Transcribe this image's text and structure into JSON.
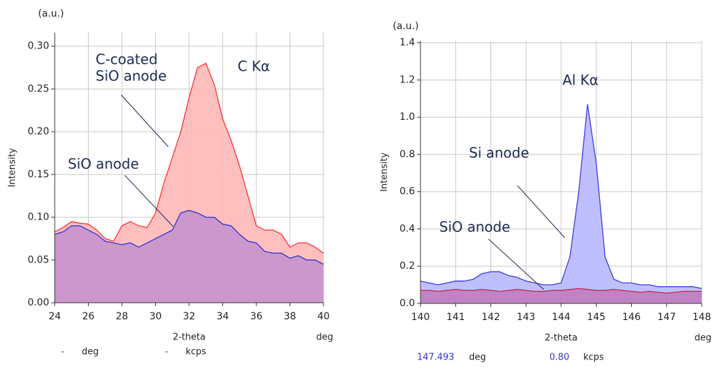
{
  "chart_data": [
    {
      "type": "area",
      "unit_label": "(a.u.)",
      "ylabel": "Intensity",
      "xlabel": "2-theta",
      "xunit": "deg",
      "xlim": [
        24,
        40
      ],
      "xticks": [
        24,
        26,
        28,
        30,
        32,
        34,
        36,
        38,
        40
      ],
      "ylim": [
        0,
        0.316
      ],
      "yticks": [
        {
          "value": 0,
          "label": "0.00"
        },
        {
          "value": 0.05,
          "label": "0.05"
        },
        {
          "value": 0.1,
          "label": "0.10"
        },
        {
          "value": 0.15,
          "label": "0.15"
        },
        {
          "value": 0.2,
          "label": "0.20"
        },
        {
          "value": 0.25,
          "label": "0.25"
        },
        {
          "value": 0.3,
          "label": "0.30"
        }
      ],
      "grid": true,
      "x": [
        24,
        24.5,
        25,
        25.5,
        26,
        26.5,
        27,
        27.5,
        28,
        28.5,
        29,
        29.5,
        30,
        30.5,
        31,
        31.5,
        32,
        32.5,
        33,
        33.5,
        34,
        34.5,
        35,
        35.5,
        36,
        36.5,
        37,
        37.5,
        38,
        38.5,
        39,
        39.5,
        40
      ],
      "series": [
        {
          "color": "#ff3030",
          "fill": "#ffb8b8",
          "values": [
            0.083,
            0.088,
            0.095,
            0.093,
            0.092,
            0.085,
            0.075,
            0.072,
            0.09,
            0.095,
            0.09,
            0.088,
            0.105,
            0.14,
            0.17,
            0.2,
            0.24,
            0.275,
            0.28,
            0.255,
            0.215,
            0.19,
            0.16,
            0.125,
            0.09,
            0.085,
            0.085,
            0.08,
            0.065,
            0.07,
            0.07,
            0.065,
            0.058
          ]
        },
        {
          "color": "#3030d0",
          "fill": "#b98ad0",
          "values": [
            0.08,
            0.083,
            0.09,
            0.09,
            0.085,
            0.08,
            0.072,
            0.07,
            0.068,
            0.07,
            0.065,
            0.07,
            0.075,
            0.08,
            0.085,
            0.105,
            0.108,
            0.105,
            0.1,
            0.1,
            0.092,
            0.09,
            0.08,
            0.072,
            0.07,
            0.06,
            0.058,
            0.058,
            0.052,
            0.055,
            0.05,
            0.05,
            0.045
          ]
        }
      ],
      "annotations": [
        {
          "lines": [
            "C-coated",
            "SiO anode"
          ]
        },
        {
          "lines": [
            "C Kα"
          ]
        },
        {
          "lines": [
            "SiO anode"
          ]
        }
      ],
      "status": [
        {
          "value": "-",
          "unit": "deg"
        },
        {
          "value": "-",
          "unit": "kcps"
        }
      ]
    },
    {
      "type": "area",
      "unit_label": "(a.u.)",
      "ylabel": "Intensity",
      "xlabel": "2-theta",
      "xunit": "deg",
      "xlim": [
        140,
        148
      ],
      "xticks": [
        140,
        141,
        142,
        143,
        144,
        145,
        146,
        147,
        148
      ],
      "ylim": [
        0,
        1.41
      ],
      "yticks": [
        {
          "value": 0,
          "label": "0.0"
        },
        0.2,
        0.4,
        0.6,
        0.8,
        {
          "value": 1,
          "label": "1.0"
        },
        1.2,
        1.4
      ],
      "grid": true,
      "x": [
        140,
        140.25,
        140.5,
        140.75,
        141,
        141.25,
        141.5,
        141.75,
        142,
        142.25,
        142.5,
        142.75,
        143,
        143.25,
        143.5,
        143.75,
        144,
        144.25,
        144.5,
        144.75,
        145,
        145.25,
        145.5,
        145.75,
        146,
        146.25,
        146.5,
        146.75,
        147,
        147.25,
        147.5,
        147.75,
        148
      ],
      "series": [
        {
          "color": "#3a3ae0",
          "fill": "#b8b8ff",
          "values": [
            0.12,
            0.11,
            0.1,
            0.11,
            0.12,
            0.12,
            0.13,
            0.16,
            0.17,
            0.17,
            0.15,
            0.14,
            0.12,
            0.11,
            0.1,
            0.1,
            0.11,
            0.25,
            0.6,
            1.07,
            0.75,
            0.25,
            0.13,
            0.11,
            0.11,
            0.1,
            0.1,
            0.09,
            0.09,
            0.09,
            0.09,
            0.09,
            0.08
          ]
        },
        {
          "color": "#c02850",
          "fill": "#c070b0",
          "values": [
            0.07,
            0.07,
            0.065,
            0.07,
            0.075,
            0.07,
            0.07,
            0.075,
            0.07,
            0.065,
            0.07,
            0.075,
            0.07,
            0.065,
            0.065,
            0.07,
            0.07,
            0.075,
            0.08,
            0.075,
            0.07,
            0.07,
            0.075,
            0.07,
            0.065,
            0.06,
            0.065,
            0.06,
            0.055,
            0.06,
            0.065,
            0.065,
            0.065
          ]
        }
      ],
      "annotations": [
        {
          "lines": [
            "Al Kα"
          ]
        },
        {
          "lines": [
            "Si anode"
          ]
        },
        {
          "lines": [
            "SiO anode"
          ]
        }
      ],
      "status": [
        {
          "value": "147.493",
          "unit": "deg"
        },
        {
          "value": "0.80",
          "unit": "kcps"
        }
      ]
    }
  ]
}
